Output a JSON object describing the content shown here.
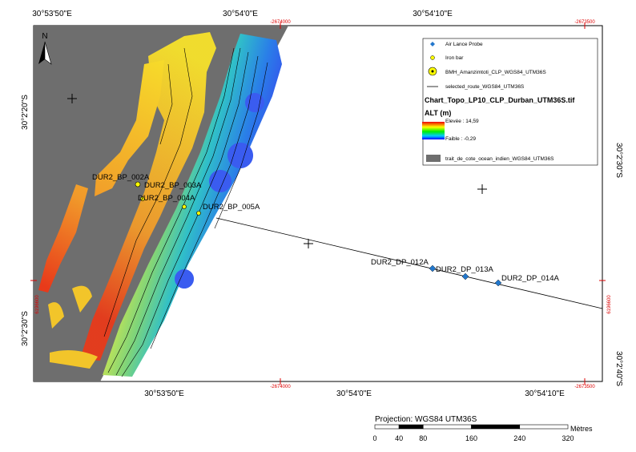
{
  "grid_labels": {
    "top": [
      "30°53'50\"E",
      "30°54'0\"E",
      "30°54'10\"E"
    ],
    "bottom": [
      "30°53'50\"E",
      "30°54'0\"E",
      "30°54'10\"E"
    ],
    "left": [
      "30°2'20\"S",
      "30°2'30\"S"
    ],
    "right": [
      "30°2'30\"S",
      "30°2'40\"S"
    ],
    "projected_top": [
      "-2674000",
      "-2673500"
    ],
    "projected_bottom": [
      "-2674000",
      "-2673500"
    ],
    "projected_side": [
      "6196600",
      "6196600"
    ]
  },
  "north": "N",
  "points": [
    {
      "label": "DUR2_BP_002A"
    },
    {
      "label": "DUR2_BP_003A"
    },
    {
      "label": "DUR2_BP_004A"
    },
    {
      "label": "DUR2_BP_005A"
    },
    {
      "label": "DUR2_DP_012A"
    },
    {
      "label": "DUR2_DP_013A"
    },
    {
      "label": "DUR2_DP_014A"
    }
  ],
  "legend": {
    "air_lance": "Air Lance Probe",
    "iron_bar": "Iron bar",
    "bmh": "BMH_Amanzimtoti_CLP_WGS84_UTM36S",
    "route": "selected_route_WGS84_UTM36S",
    "raster": "Chart_Topo_LP10_CLP_Durban_UTM36S.tif",
    "alt": "ALT (m)",
    "high": "Elevée : 14,59",
    "low": "Faible : -0,29",
    "coast": "trait_de_cote_ocean_indien_WGS84_UTM36S"
  },
  "scale": {
    "projection": "Projection: WGS84 UTM36S",
    "unit": "Mètres",
    "ticks": [
      0,
      40,
      80,
      160,
      240,
      320
    ]
  }
}
